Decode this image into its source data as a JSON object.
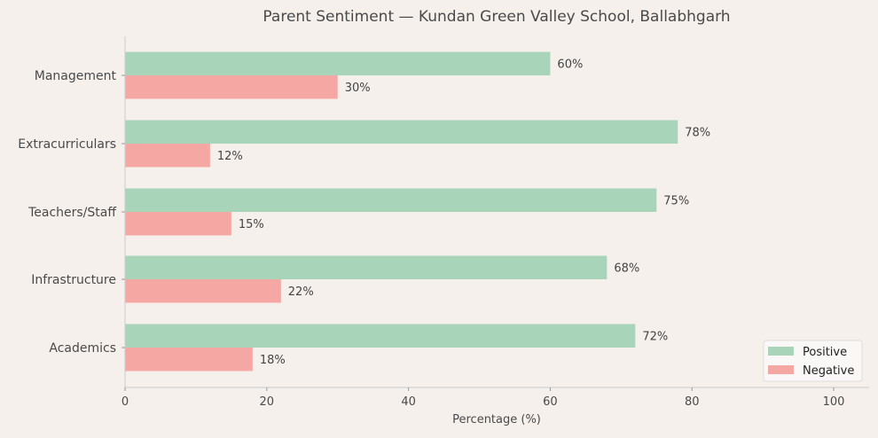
{
  "chart_data": {
    "type": "bar",
    "orientation": "horizontal",
    "title": "Parent Sentiment — Kundan Green Valley School, Ballabhgarh",
    "xlabel": "Percentage (%)",
    "ylabel": "",
    "xlim": [
      0,
      105
    ],
    "xticks": [
      0,
      20,
      40,
      60,
      80,
      100
    ],
    "categories": [
      "Management",
      "Extracurriculars",
      "Teachers/Staff",
      "Infrastructure",
      "Academics"
    ],
    "series": [
      {
        "name": "Positive",
        "color": "#a8d5ba",
        "values": [
          60,
          78,
          75,
          68,
          72
        ],
        "labels": [
          "60%",
          "78%",
          "75%",
          "68%",
          "72%"
        ]
      },
      {
        "name": "Negative",
        "color": "#f5a7a3",
        "values": [
          30,
          12,
          15,
          22,
          18
        ],
        "labels": [
          "30%",
          "12%",
          "15%",
          "22%",
          "18%"
        ]
      }
    ],
    "grid": false,
    "legend": "lower-right"
  }
}
